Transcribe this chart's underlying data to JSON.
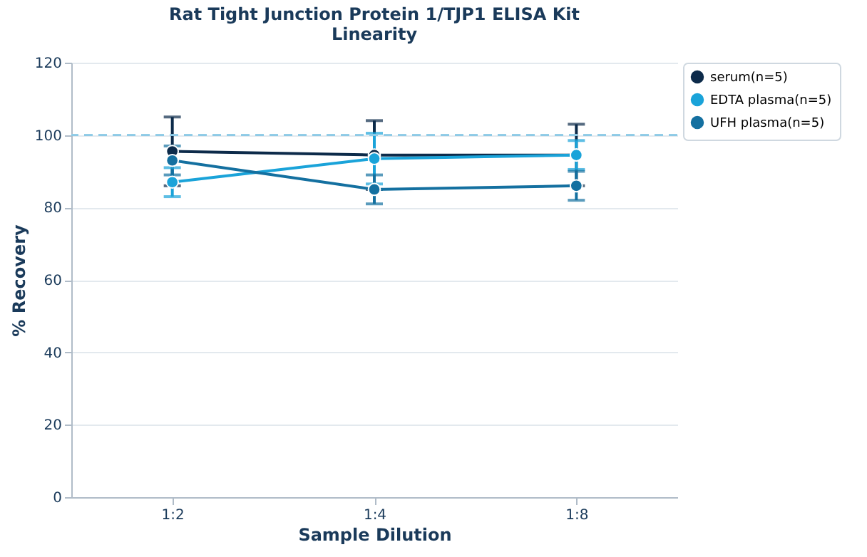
{
  "chart_data": {
    "type": "line",
    "title": "Rat Tight Junction Protein 1/TJP1 ELISA Kit",
    "subtitle": "Linearity",
    "xlabel": "Sample Dilution",
    "ylabel": "% Recovery",
    "categories": [
      "1:2",
      "1:4",
      "1:8"
    ],
    "series": [
      {
        "name": "serum(n=5)",
        "color": "#0d2b4a",
        "values": [
          95.5,
          94.5,
          94.5
        ],
        "errors": [
          9.5,
          9.5,
          8.5
        ]
      },
      {
        "name": "EDTA plasma(n=5)",
        "color": "#1aa3d9",
        "values": [
          87,
          93.5,
          94.5
        ],
        "errors": [
          4,
          7,
          4
        ]
      },
      {
        "name": "UFH plasma(n=5)",
        "color": "#1470a0",
        "values": [
          93,
          85,
          86
        ],
        "errors": [
          4,
          4,
          4
        ]
      }
    ],
    "ylim": [
      0,
      120
    ],
    "yticks": [
      0,
      20,
      40,
      60,
      80,
      100,
      120
    ],
    "grid": "y",
    "legend": "top right",
    "marker": "circle",
    "line_style": "solid",
    "ref_lines": [
      {
        "axis": "y",
        "value": 100,
        "color": "#8ecae6",
        "line_style": "dashed"
      }
    ]
  }
}
